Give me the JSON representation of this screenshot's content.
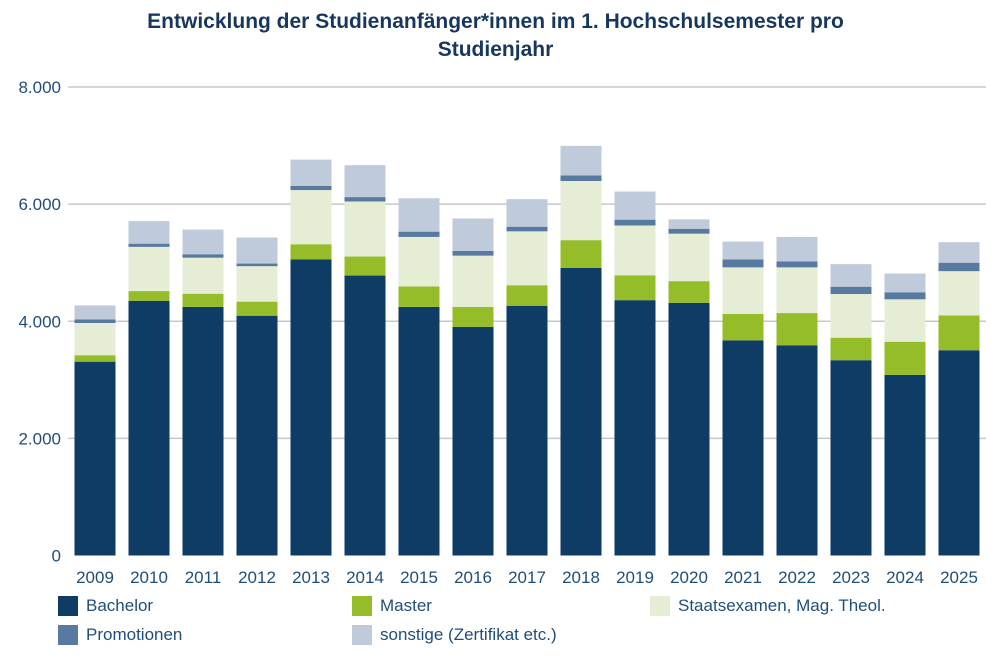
{
  "chart_data": {
    "type": "bar",
    "stacked": true,
    "title": "Entwicklung der Studienanfänger*innen im 1. Hochschulsemester pro Studienjahr",
    "title_lines": [
      "Entwicklung der Studienanfänger*innen im 1. Hochschulsemester pro",
      "Studienjahr"
    ],
    "xlabel": "",
    "ylabel": "",
    "ylim": [
      0,
      8000
    ],
    "yticks": [
      0,
      2000,
      4000,
      6000,
      8000
    ],
    "ytick_labels": [
      "0",
      "2.000",
      "4.000",
      "6.000",
      "8.000"
    ],
    "grid": true,
    "legend_position": "bottom",
    "categories": [
      "2009",
      "2010",
      "2011",
      "2012",
      "2013",
      "2014",
      "2015",
      "2016",
      "2017",
      "2018",
      "2019",
      "2020",
      "2021",
      "2022",
      "2023",
      "2024",
      "2025"
    ],
    "series": [
      {
        "name": "Bachelor",
        "color": "#0f3c64",
        "values": [
          3310,
          4350,
          4245,
          4095,
          5055,
          4780,
          4245,
          3905,
          4265,
          4910,
          4360,
          4315,
          3675,
          3590,
          3335,
          3085,
          3505
        ]
      },
      {
        "name": "Master",
        "color": "#95bd2a",
        "values": [
          110,
          165,
          225,
          240,
          260,
          325,
          350,
          340,
          350,
          475,
          425,
          370,
          450,
          550,
          385,
          565,
          595
        ]
      },
      {
        "name": "Staatsexamen, Mag. Theol.",
        "color": "#e6edd5",
        "values": [
          550,
          755,
          615,
          605,
          925,
          940,
          845,
          875,
          920,
          1010,
          850,
          810,
          795,
          780,
          745,
          725,
          755
        ]
      },
      {
        "name": "Promotionen",
        "color": "#587aa0",
        "values": [
          60,
          55,
          60,
          45,
          70,
          75,
          90,
          80,
          80,
          95,
          100,
          85,
          135,
          100,
          125,
          120,
          145
        ]
      },
      {
        "name": "sonstige (Zertifikat etc.)",
        "color": "#bfcadb",
        "values": [
          240,
          385,
          420,
          445,
          450,
          545,
          570,
          555,
          470,
          505,
          480,
          160,
          305,
          420,
          385,
          320,
          350
        ]
      }
    ]
  }
}
